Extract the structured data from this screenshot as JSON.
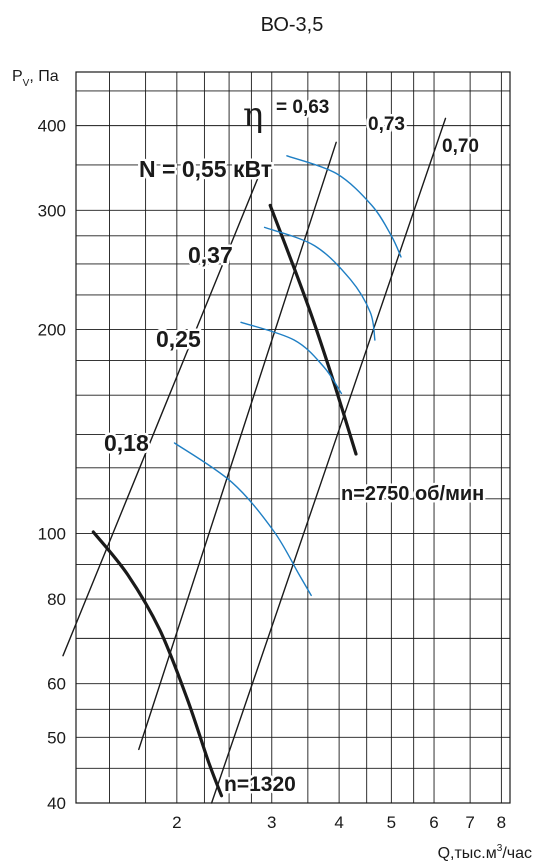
{
  "chart_data": {
    "type": "line",
    "title": "ВО-3,5",
    "xlabel": "Q,тыс.м³/час",
    "xlabel_parts": {
      "base": "Q,тыс.м",
      "sup": "3",
      "tail": "/час"
    },
    "ylabel": "Pv, Па",
    "ylabel_parts": {
      "base": "P",
      "sub": "V",
      "tail": ", Па"
    },
    "x_scale": "log",
    "y_scale": "log",
    "xlim": [
      1.3,
      8.3
    ],
    "ylim": [
      40,
      480
    ],
    "x_ticks": [
      2,
      3,
      4,
      5,
      6,
      7,
      8
    ],
    "x_tick_labels": [
      "2",
      "3",
      "4",
      "5",
      "6",
      "7",
      "8"
    ],
    "y_ticks": [
      40,
      50,
      60,
      80,
      100,
      200,
      300,
      400
    ],
    "y_tick_labels": [
      "40",
      "50",
      "60",
      "80",
      "100",
      "200",
      "300",
      "400"
    ],
    "x_grid": [
      1.5,
      1.75,
      2,
      2.25,
      2.5,
      2.75,
      3,
      3.5,
      4,
      4.5,
      5,
      5.5,
      6,
      7,
      8
    ],
    "y_grid": [
      40,
      45,
      50,
      55,
      60,
      70,
      80,
      90,
      100,
      112.5,
      125,
      140,
      160,
      180,
      200,
      225,
      250,
      275,
      300,
      350,
      400,
      450
    ],
    "grid": true,
    "series": [
      {
        "kind": "speed",
        "label": "n=1320",
        "points": [
          [
            1.4,
            100.5
          ],
          [
            1.62,
            87
          ],
          [
            1.86,
            72
          ],
          [
            2.09,
            57
          ],
          [
            2.29,
            46
          ],
          [
            2.42,
            41
          ]
        ]
      },
      {
        "kind": "speed",
        "label": "n=2750 об/мин",
        "points": [
          [
            2.98,
            305
          ],
          [
            3.33,
            242
          ],
          [
            3.6,
            204
          ],
          [
            3.93,
            165
          ],
          [
            4.3,
            131
          ]
        ]
      },
      {
        "kind": "efficiency",
        "label": "0,63",
        "points": [
          [
            1.23,
            66
          ],
          [
            2.85,
            340
          ]
        ]
      },
      {
        "kind": "efficiency",
        "label": "0,73",
        "points": [
          [
            1.7,
            48
          ],
          [
            3.95,
            378
          ]
        ]
      },
      {
        "kind": "efficiency",
        "label": "0,70",
        "points": [
          [
            2.32,
            40
          ],
          [
            6.3,
            410
          ]
        ]
      },
      {
        "kind": "power",
        "label": "0,18",
        "points": [
          [
            1.98,
            136
          ],
          [
            2.53,
            119
          ],
          [
            3.02,
            101
          ],
          [
            3.37,
            87
          ],
          [
            3.55,
            81
          ]
        ]
      },
      {
        "kind": "power",
        "label": "0,25",
        "points": [
          [
            2.63,
            205
          ],
          [
            3.3,
            193
          ],
          [
            3.75,
            176
          ],
          [
            4.04,
            161
          ]
        ]
      },
      {
        "kind": "power",
        "label": "0,37",
        "points": [
          [
            2.91,
            283
          ],
          [
            3.6,
            266
          ],
          [
            4.2,
            237
          ],
          [
            4.57,
            212
          ],
          [
            4.66,
            193
          ]
        ]
      },
      {
        "kind": "power",
        "label": "N = 0,55 кВт",
        "points": [
          [
            3.2,
            361
          ],
          [
            3.95,
            340
          ],
          [
            4.6,
            305
          ],
          [
            5.0,
            275
          ],
          [
            5.21,
            256
          ]
        ]
      }
    ],
    "annotations": {
      "eta_symbol": "η",
      "eta_value": "= 0,63"
    }
  }
}
